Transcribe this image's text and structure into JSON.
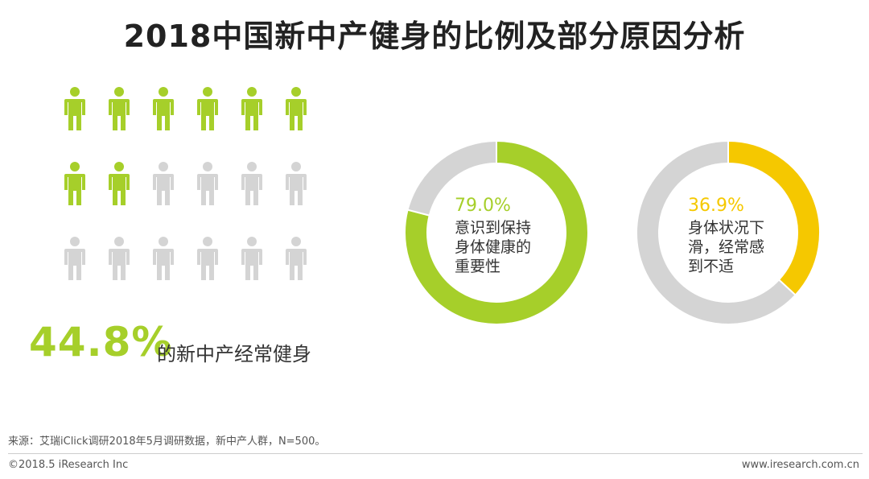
{
  "title": "2018中国新中产健身的比例及部分原因分析",
  "people_chart": {
    "total": 18,
    "highlighted": 8,
    "color_on": "#a6cf2a",
    "color_off": "#d4d4d4",
    "percent_text": "44.8%",
    "description": "的新中产经常健身"
  },
  "chart_data": [
    {
      "type": "pie",
      "values": [
        79.0,
        21.0
      ],
      "colors": [
        "#a6cf2a",
        "#d4d4d4"
      ],
      "value_label": "79.0%",
      "label": "意识到保持\n身体健康的\n重要性"
    },
    {
      "type": "pie",
      "values": [
        36.9,
        63.1
      ],
      "colors": [
        "#f5c800",
        "#d4d4d4"
      ],
      "value_label": "36.9%",
      "label": "身体状况下\n滑，经常感\n到不适"
    }
  ],
  "footer": {
    "source": "来源：艾瑞iClick调研2018年5月调研数据，新中产人群，N=500。",
    "copyright": "©2018.5 iResearch Inc",
    "website": "www.iresearch.com.cn"
  }
}
